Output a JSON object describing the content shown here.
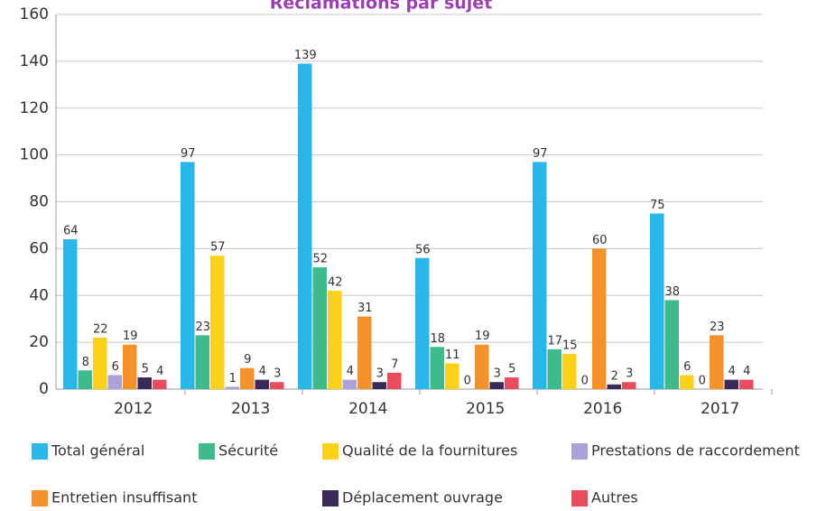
{
  "chart_data": {
    "type": "bar",
    "title": "Réclamations par sujet",
    "categories": [
      "2012",
      "2013",
      "2014",
      "2015",
      "2016",
      "2017"
    ],
    "series": [
      {
        "name": "Total général",
        "color": "#29b6e8",
        "values": [
          64,
          97,
          139,
          56,
          97,
          75
        ]
      },
      {
        "name": "Sécurité",
        "color": "#3dbb8a",
        "values": [
          8,
          23,
          52,
          18,
          17,
          38
        ]
      },
      {
        "name": "Qualité de la fournitures",
        "color": "#fcd116",
        "values": [
          22,
          57,
          42,
          11,
          15,
          6
        ]
      },
      {
        "name": "Prestations de raccordement",
        "color": "#a9a3d9",
        "values": [
          6,
          1,
          4,
          0,
          0,
          0
        ]
      },
      {
        "name": "Entretien insuffisant",
        "color": "#f5922a",
        "values": [
          19,
          9,
          31,
          19,
          60,
          23
        ]
      },
      {
        "name": "Déplacement ouvrage",
        "color": "#3a2a5c",
        "values": [
          5,
          4,
          3,
          3,
          2,
          4
        ]
      },
      {
        "name": "Autres",
        "color": "#e84c5d",
        "values": [
          4,
          3,
          7,
          5,
          3,
          4
        ]
      }
    ],
    "ylim": [
      0,
      160
    ],
    "yticks": [
      0,
      20,
      40,
      60,
      80,
      100,
      120,
      140,
      160
    ],
    "grid": true
  }
}
